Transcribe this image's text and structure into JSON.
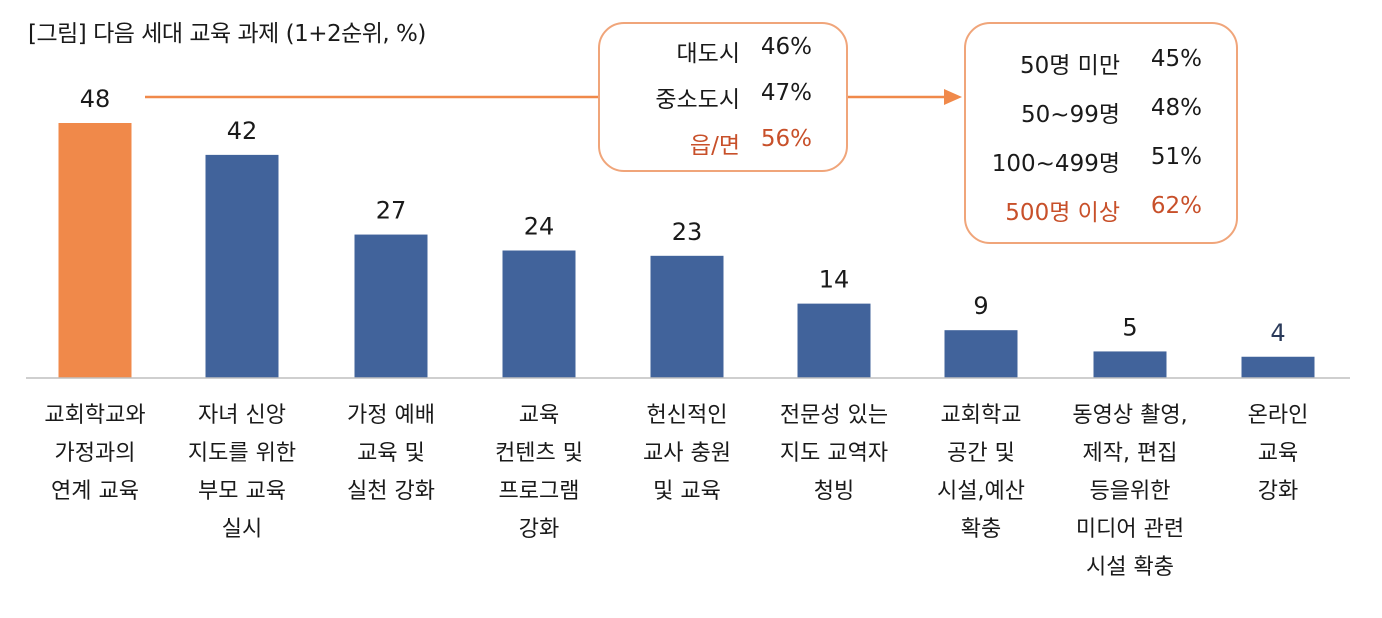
{
  "chart_data": {
    "type": "bar",
    "title": "[그림] 다음 세대 교육 과제 (1+2순위, %)",
    "categories": [
      [
        "교회학교와",
        "가정과의",
        "연계 교육"
      ],
      [
        "자녀 신앙",
        "지도를 위한",
        "부모 교육",
        "실시"
      ],
      [
        "가정 예배",
        "교육 및",
        "실천 강화"
      ],
      [
        "교육",
        "컨텐츠 및",
        "프로그램",
        "강화"
      ],
      [
        "헌신적인",
        "교사 충원",
        "및 교육"
      ],
      [
        "전문성 있는",
        "지도 교역자",
        "청빙"
      ],
      [
        "교회학교",
        "공간 및",
        "시설,예산",
        "확충"
      ],
      [
        "동영상 촬영,",
        "제작, 편집",
        "등을위한",
        "미디어 관련",
        "시설 확충"
      ],
      [
        "온라인",
        "교육",
        "강화"
      ]
    ],
    "values": [
      48,
      42,
      27,
      24,
      23,
      14,
      9,
      5,
      4
    ],
    "ylim": [
      0,
      60
    ],
    "grid": false,
    "colors": {
      "highlight": "#f0894a",
      "default": "#41639b",
      "last_label": "#2a3a5a",
      "arrow": "#f0894a",
      "emphasis_text": "#c8502a"
    },
    "highlight_index": 0
  },
  "callouts": {
    "region": [
      {
        "label": "대도시",
        "value": "46%",
        "emphasis": false
      },
      {
        "label": "중소도시",
        "value": "47%",
        "emphasis": false
      },
      {
        "label": "읍/면",
        "value": "56%",
        "emphasis": true
      }
    ],
    "size": [
      {
        "label": "50명 미만",
        "value": "45%",
        "emphasis": false
      },
      {
        "label": "50~99명",
        "value": "48%",
        "emphasis": false
      },
      {
        "label": "100~499명",
        "value": "51%",
        "emphasis": false
      },
      {
        "label": "500명 이상",
        "value": "62%",
        "emphasis": true
      }
    ]
  }
}
